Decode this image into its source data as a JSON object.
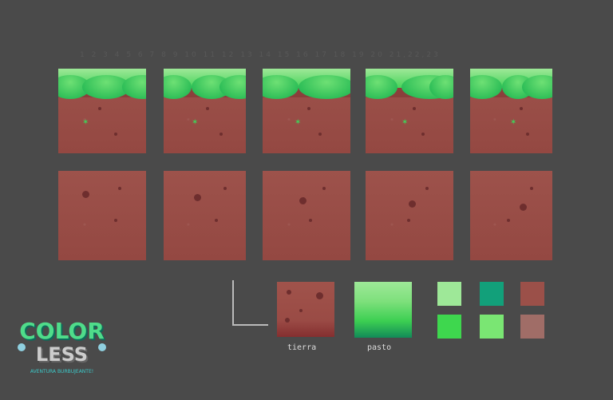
{
  "sheet_numbers": "1 2 3 4 5 6 7 8 9 10 11 12 13 14 15 16 17 18 19 20 21,22,23",
  "reference": {
    "dirt_label": "tierra",
    "grass_label": "pasto"
  },
  "palette": [
    "#9ee898",
    "#12a07a",
    "#9b5049",
    "#3ed74e",
    "#7ae673",
    "#a06d67"
  ],
  "logo": {
    "title_line1": "COLOR",
    "title_line2": "LESS",
    "tagline": "AVENTURA BURBUJEANTE!"
  }
}
